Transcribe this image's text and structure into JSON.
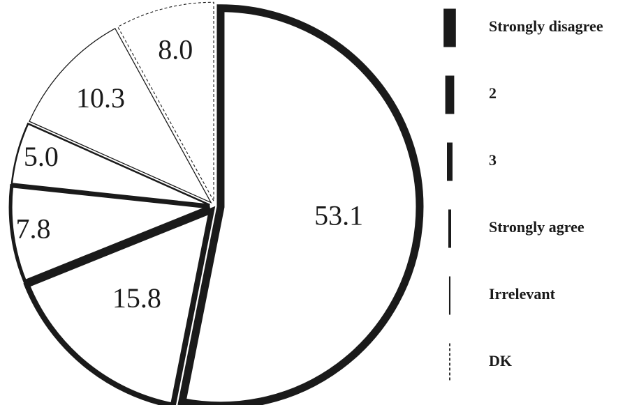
{
  "chart_data": {
    "type": "pie",
    "labels": [
      "Strongly disagree",
      "2",
      "3",
      "Strongly agree",
      "Irrelevant",
      "DK"
    ],
    "values": [
      53.1,
      15.8,
      7.8,
      5.0,
      10.3,
      8.0
    ],
    "value_labels": [
      "53.1",
      "15.8",
      "7.8",
      "5.0",
      "10.3",
      "8.0"
    ],
    "start": "12 o'clock",
    "direction": "clockwise",
    "legend_position": "right",
    "slice_fill": "#ffffff",
    "stroke_color": "#1a1a1a"
  }
}
